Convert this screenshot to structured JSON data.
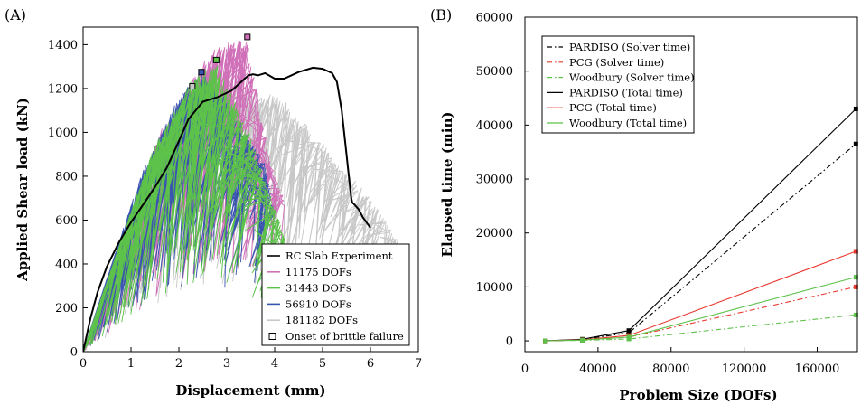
{
  "chart_data": [
    {
      "panel_label": "(A)",
      "type": "line",
      "xlabel": "Displacement (mm)",
      "ylabel": "Applied Shear load (kN)",
      "xlim": [
        0,
        7
      ],
      "ylim": [
        0,
        1480
      ],
      "xticks": [
        "0",
        "1",
        "2",
        "3",
        "4",
        "5",
        "6",
        "7"
      ],
      "yticks": [
        "0",
        "200",
        "400",
        "600",
        "800",
        "1000",
        "1200",
        "1400"
      ],
      "legend_position": "bottom-right",
      "legend": [
        {
          "label": "RC Slab Experiment",
          "color": "#000000",
          "kind": "line"
        },
        {
          "label": "11175 DOFs",
          "color": "#d070b8",
          "kind": "line"
        },
        {
          "label": "31443 DOFs",
          "color": "#5cc24a",
          "kind": "line"
        },
        {
          "label": "56910 DOFs",
          "color": "#3a55b0",
          "kind": "line"
        },
        {
          "label": "181182 DOFs",
          "color": "#c8c8c8",
          "kind": "line"
        },
        {
          "label": "Onset of brittle failure",
          "color": "#000000",
          "kind": "square"
        }
      ],
      "experiment": {
        "x": [
          0,
          0.15,
          0.3,
          0.5,
          0.75,
          1.0,
          1.25,
          1.5,
          1.75,
          2.0,
          2.2,
          2.5,
          2.8,
          3.1,
          3.3,
          3.45,
          3.55,
          3.65,
          3.8,
          4.0,
          4.2,
          4.5,
          4.8,
          5.0,
          5.2,
          5.3,
          5.4,
          5.5,
          5.55,
          5.6,
          5.62,
          5.65,
          5.75,
          5.85,
          5.95,
          6.0
        ],
        "y": [
          0,
          150,
          270,
          390,
          500,
          590,
          670,
          750,
          840,
          960,
          1060,
          1140,
          1160,
          1190,
          1230,
          1260,
          1265,
          1260,
          1270,
          1245,
          1245,
          1275,
          1295,
          1290,
          1270,
          1230,
          1100,
          900,
          800,
          700,
          680,
          675,
          650,
          610,
          580,
          565
        ]
      },
      "brittle_failure_points": [
        {
          "series": "181182 DOFs",
          "x": 2.28,
          "y": 1210
        },
        {
          "series": "56910 DOFs",
          "x": 2.47,
          "y": 1275
        },
        {
          "series": "31443 DOFs",
          "x": 2.78,
          "y": 1330
        },
        {
          "series": "11175 DOFs",
          "x": 3.43,
          "y": 1435
        }
      ],
      "simulation_series": [
        {
          "name": "181182 DOFs",
          "color": "#c8c8c8",
          "envelope_x": [
            0,
            1.3,
            2.3,
            3.2,
            4.2,
            5.2,
            6.0,
            6.6
          ],
          "envelope_y": [
            0,
            700,
            1210,
            1230,
            1150,
            900,
            700,
            505
          ]
        },
        {
          "name": "11175 DOFs",
          "color": "#d070b8",
          "envelope_x": [
            0,
            1.6,
            2.6,
            3.0,
            3.43,
            3.7,
            4.0,
            4.2
          ],
          "envelope_y": [
            0,
            1000,
            1350,
            1420,
            1435,
            1100,
            800,
            700
          ]
        },
        {
          "name": "56910 DOFs",
          "color": "#3a55b0",
          "envelope_x": [
            0,
            1.2,
            2.0,
            2.47,
            3.0,
            3.8,
            4.0
          ],
          "envelope_y": [
            0,
            800,
            1170,
            1275,
            1150,
            860,
            640
          ]
        },
        {
          "name": "31443 DOFs",
          "color": "#5cc24a",
          "envelope_x": [
            0,
            1.4,
            2.3,
            2.78,
            3.5,
            4.2,
            4.3
          ],
          "envelope_y": [
            0,
            900,
            1250,
            1330,
            980,
            530,
            420
          ]
        }
      ]
    },
    {
      "panel_label": "(B)",
      "type": "line",
      "xlabel": "Problem Size (DOFs)",
      "ylabel": "Elapsed time (min)",
      "xlim": [
        0,
        182000
      ],
      "ylim": [
        -2000,
        60000
      ],
      "xticks": [
        "0",
        "40000",
        "80000",
        "120000",
        "160000"
      ],
      "yticks": [
        "0",
        "10000",
        "20000",
        "30000",
        "40000",
        "50000",
        "60000"
      ],
      "legend_position": "top-left",
      "x": [
        11175,
        31443,
        56910,
        181182
      ],
      "series": [
        {
          "name": "PARDISO (Solver time)",
          "color": "#000000",
          "dash": "6,3,1.5,3",
          "values": [
            0,
            250,
            1500,
            36500
          ]
        },
        {
          "name": "PCG (Solver time)",
          "color": "#e8382e",
          "dash": "6,3,1.5,3",
          "values": [
            0,
            150,
            700,
            10000
          ]
        },
        {
          "name": "Woodbury (Solver time)",
          "color": "#5cc24a",
          "dash": "6,3,1.5,3",
          "values": [
            0,
            100,
            350,
            4800
          ]
        },
        {
          "name": "PARDISO (Total time)",
          "color": "#000000",
          "dash": "",
          "values": [
            0,
            300,
            1900,
            43000
          ]
        },
        {
          "name": "PCG (Total time)",
          "color": "#e8382e",
          "dash": "",
          "values": [
            0,
            200,
            1000,
            16600
          ]
        },
        {
          "name": "Woodbury (Total time)",
          "color": "#5cc24a",
          "dash": "",
          "values": [
            0,
            150,
            700,
            11800
          ]
        }
      ]
    }
  ]
}
